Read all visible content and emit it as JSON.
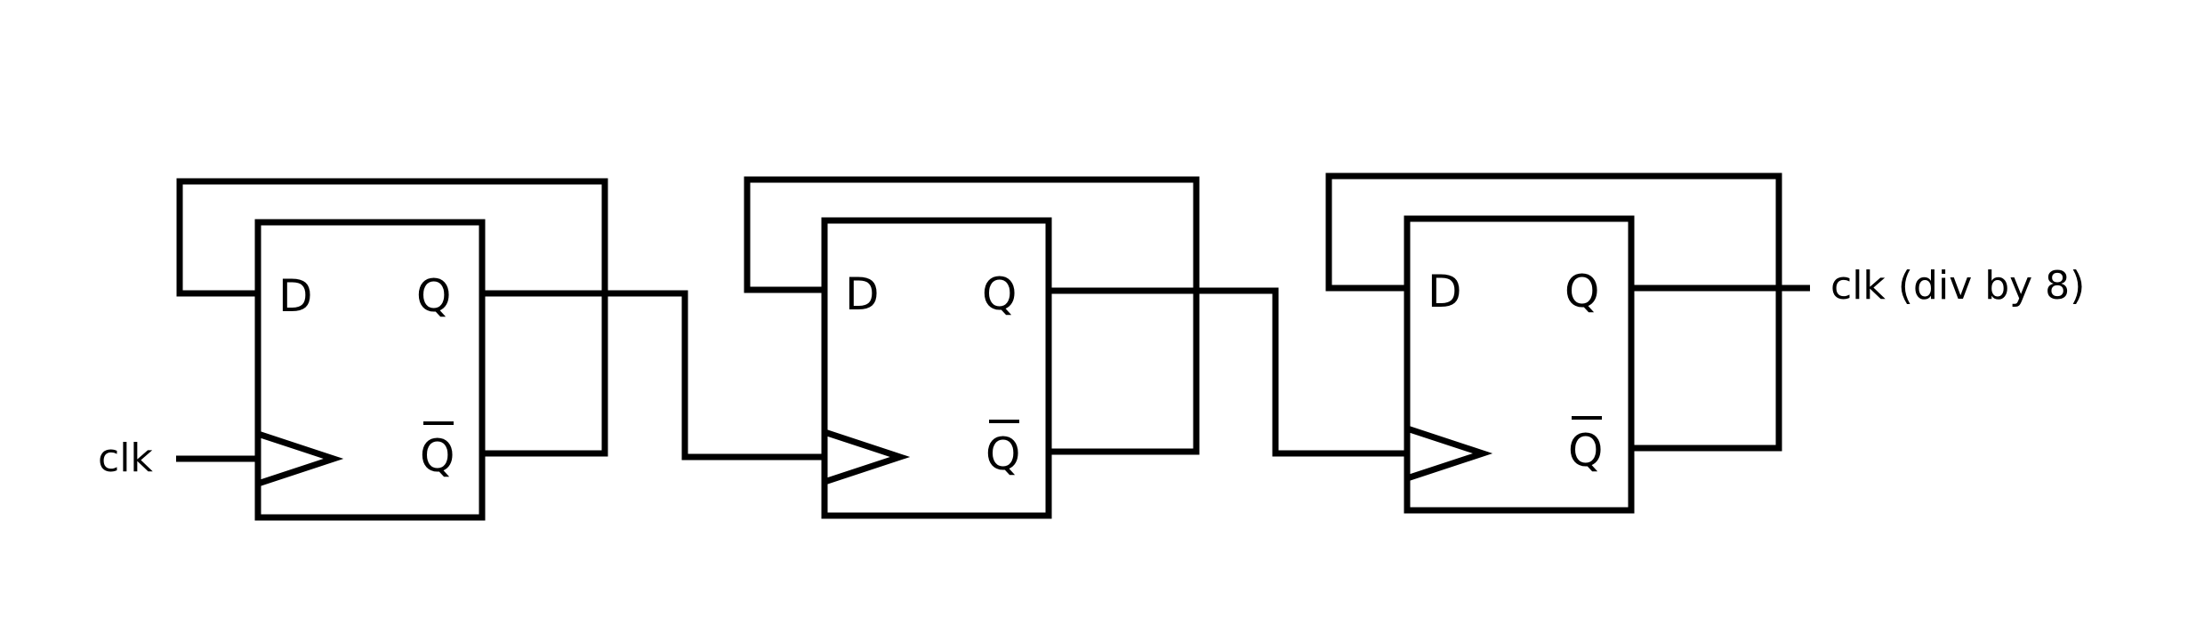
{
  "diagram": {
    "input_label": "clk",
    "output_label": "clk (div by 8)",
    "flip_flops": [
      {
        "d": "D",
        "q": "Q",
        "qbar": "Q"
      },
      {
        "d": "D",
        "q": "Q",
        "qbar": "Q"
      },
      {
        "d": "D",
        "q": "Q",
        "qbar": "Q"
      }
    ]
  }
}
